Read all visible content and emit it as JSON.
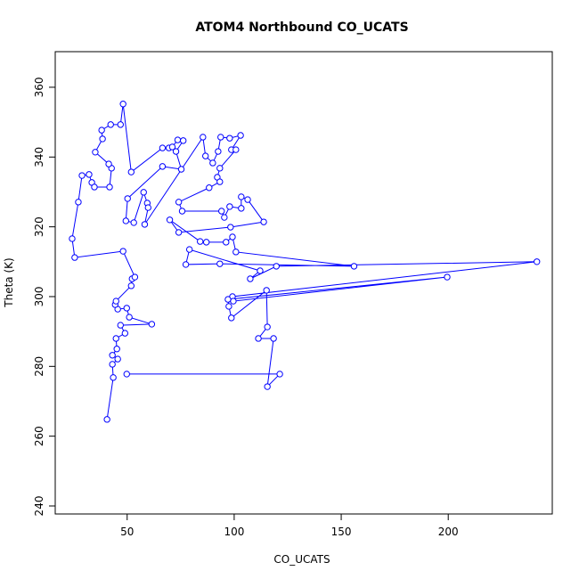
{
  "chart_data": {
    "type": "scatter-line",
    "title": "ATOM4 Northbound CO_UCATS",
    "x_label": "CO_UCATS",
    "y_label": "Theta (K)",
    "color": "#0000ff",
    "x": [
      40.6,
      43.5,
      43.1,
      45.6,
      43.1,
      45.2,
      44.8,
      49.0,
      46.9,
      61.5,
      51.0,
      49.8,
      45.6,
      44.4,
      44.8,
      51.9,
      52.3,
      53.6,
      48.1,
      25.5,
      24.3,
      27.2,
      28.9,
      32.2,
      33.5,
      34.7,
      41.8,
      42.7,
      41.4,
      35.1,
      38.5,
      38.1,
      42.3,
      46.9,
      48.1,
      51.9,
      66.5,
      69.5,
      71.1,
      73.6,
      76.2,
      72.8,
      75.3,
      66.5,
      50.2,
      49.4,
      53.1,
      57.7,
      59.4,
      59.8,
      58.2,
      85.4,
      86.6,
      90.0,
      92.5,
      93.7,
      97.9,
      103.0,
      98.7,
      100.8,
      93.3,
      92.1,
      93.3,
      88.3,
      74.1,
      75.7,
      94.1,
      95.4,
      97.9,
      103.3,
      103.3,
      106.3,
      113.8,
      98.3,
      74.1,
      69.9,
      84.1,
      87.0,
      96.2,
      99.2,
      100.8,
      156.0,
      93.3,
      77.4,
      79.1,
      112.1,
      107.5,
      119.7,
      241.4,
      99.2,
      99.6,
      199.5,
      97.1,
      97.5,
      98.7,
      115.1,
      115.5,
      111.3,
      118.4,
      115.5,
      121.3,
      49.8
    ],
    "y": [
      264.8,
      276.8,
      280.6,
      282.1,
      283.2,
      285.0,
      288.0,
      289.5,
      291.8,
      292.1,
      294.1,
      296.7,
      296.4,
      297.7,
      298.7,
      303.1,
      305.1,
      305.6,
      313.0,
      311.2,
      316.6,
      327.1,
      334.7,
      335.0,
      332.7,
      331.4,
      331.4,
      336.8,
      338.0,
      341.4,
      345.2,
      347.7,
      349.3,
      349.3,
      355.2,
      335.7,
      342.6,
      342.6,
      342.9,
      344.9,
      344.7,
      341.6,
      336.5,
      337.3,
      328.1,
      321.7,
      321.2,
      329.9,
      326.8,
      325.5,
      320.7,
      345.7,
      340.3,
      338.3,
      341.6,
      345.7,
      345.4,
      346.2,
      342.1,
      342.1,
      336.8,
      334.2,
      332.9,
      331.2,
      327.1,
      324.5,
      324.5,
      322.7,
      325.8,
      325.3,
      328.6,
      327.8,
      321.4,
      319.9,
      318.4,
      322.0,
      315.8,
      315.6,
      315.6,
      317.1,
      312.8,
      308.7,
      309.4,
      309.2,
      313.5,
      307.4,
      305.1,
      308.7,
      310.0,
      300.0,
      298.7,
      305.6,
      299.2,
      297.2,
      293.9,
      301.8,
      291.3,
      288.0,
      288.0,
      274.2,
      277.8,
      277.8
    ],
    "xlim": [
      16.4,
      248.6
    ],
    "ylim": [
      237.7,
      370.2
    ],
    "xticks": [
      50,
      100,
      150,
      200
    ],
    "yticks": [
      240,
      260,
      280,
      300,
      320,
      340,
      360
    ]
  }
}
